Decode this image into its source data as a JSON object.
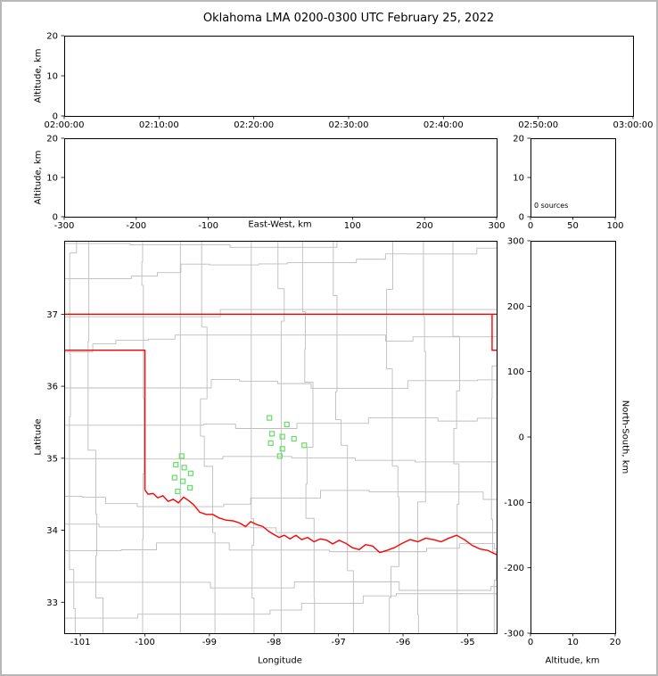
{
  "title": "Oklahoma LMA 0200-0300 UTC February 25, 2022",
  "colors": {
    "state_border": "#ff0000",
    "county_lines": "#bdbdbd",
    "station_marker": "#66dd66",
    "axis": "#000000",
    "background": "#ffffff",
    "figure_border": "#b8b8b8"
  },
  "chart_data": [
    {
      "id": "time_height",
      "type": "scatter",
      "xlabel": "",
      "ylabel": "Altitude, km",
      "ylim": [
        0,
        20
      ],
      "xticks": [
        "02:00:00",
        "02:10:00",
        "02:20:00",
        "02:30:00",
        "02:40:00",
        "02:50:00",
        "03:00:00"
      ],
      "yticks": [
        0,
        10,
        20
      ],
      "points": []
    },
    {
      "id": "east_west_height",
      "type": "scatter",
      "xlabel": "East-West, km",
      "ylabel": "Altitude, km",
      "xlim": [
        -300,
        300
      ],
      "ylim": [
        0,
        20
      ],
      "xticks": [
        -300,
        -200,
        -100,
        0,
        100,
        200,
        300
      ],
      "xtick_labels": [
        "-300",
        "-200",
        "-100",
        "",
        "100",
        "200",
        "300"
      ],
      "yticks": [
        0,
        10,
        20
      ],
      "points": []
    },
    {
      "id": "altitude_histogram",
      "type": "line",
      "annotation": "0 sources",
      "xlim": [
        0,
        100
      ],
      "ylim": [
        0,
        20
      ],
      "xticks": [
        0,
        50,
        100
      ],
      "yticks": [
        0,
        10,
        20
      ],
      "points": []
    },
    {
      "id": "plan_view_map",
      "type": "scatter",
      "xlabel": "Longitude",
      "ylabel": "Latitude",
      "xlim": [
        -101.25,
        -94.55
      ],
      "ylim": [
        32.57,
        38.02
      ],
      "xticks": [
        -101,
        -100,
        -99,
        -98,
        -97,
        -96,
        -95
      ],
      "yticks": [
        33,
        34,
        35,
        36,
        37
      ],
      "stations": [
        [
          -98.07,
          35.56
        ],
        [
          -97.8,
          35.47
        ],
        [
          -98.03,
          35.34
        ],
        [
          -97.87,
          35.3
        ],
        [
          -97.69,
          35.27
        ],
        [
          -98.05,
          35.21
        ],
        [
          -97.53,
          35.18
        ],
        [
          -97.87,
          35.13
        ],
        [
          -97.91,
          35.03
        ],
        [
          -99.43,
          35.03
        ],
        [
          -99.52,
          34.91
        ],
        [
          -99.39,
          34.87
        ],
        [
          -99.29,
          34.79
        ],
        [
          -99.54,
          34.73
        ],
        [
          -99.41,
          34.68
        ],
        [
          -99.3,
          34.59
        ],
        [
          -99.49,
          34.54
        ]
      ],
      "borders": [
        {
          "name": "kansas-north",
          "points": [
            [
              -101.25,
              37.0
            ],
            [
              -94.55,
              37.0
            ]
          ]
        },
        {
          "name": "missouri-east",
          "points": [
            [
              -94.62,
              37.0
            ],
            [
              -94.62,
              36.5
            ],
            [
              -94.55,
              36.5
            ]
          ]
        },
        {
          "name": "panhandle-west",
          "points": [
            [
              -101.25,
              36.5
            ],
            [
              -100.0,
              36.5
            ],
            [
              -100.0,
              34.56
            ]
          ]
        },
        {
          "name": "red-river-south",
          "points": [
            [
              -100.0,
              34.56
            ],
            [
              -99.95,
              34.5
            ],
            [
              -99.87,
              34.51
            ],
            [
              -99.8,
              34.45
            ],
            [
              -99.72,
              34.48
            ],
            [
              -99.64,
              34.4
            ],
            [
              -99.56,
              34.43
            ],
            [
              -99.48,
              34.38
            ],
            [
              -99.4,
              34.46
            ],
            [
              -99.32,
              34.41
            ],
            [
              -99.24,
              34.35
            ],
            [
              -99.15,
              34.25
            ],
            [
              -99.05,
              34.22
            ],
            [
              -98.95,
              34.22
            ],
            [
              -98.85,
              34.17
            ],
            [
              -98.74,
              34.14
            ],
            [
              -98.63,
              34.13
            ],
            [
              -98.53,
              34.1
            ],
            [
              -98.44,
              34.05
            ],
            [
              -98.36,
              34.12
            ],
            [
              -98.27,
              34.08
            ],
            [
              -98.17,
              34.05
            ],
            [
              -98.09,
              33.99
            ],
            [
              -98.0,
              33.94
            ],
            [
              -97.92,
              33.9
            ],
            [
              -97.84,
              33.93
            ],
            [
              -97.75,
              33.88
            ],
            [
              -97.66,
              33.93
            ],
            [
              -97.57,
              33.87
            ],
            [
              -97.48,
              33.9
            ],
            [
              -97.38,
              33.84
            ],
            [
              -97.28,
              33.88
            ],
            [
              -97.18,
              33.86
            ],
            [
              -97.09,
              33.81
            ],
            [
              -96.99,
              33.86
            ],
            [
              -96.89,
              33.82
            ],
            [
              -96.79,
              33.76
            ],
            [
              -96.68,
              33.73
            ],
            [
              -96.58,
              33.8
            ],
            [
              -96.47,
              33.78
            ],
            [
              -96.36,
              33.69
            ],
            [
              -96.25,
              33.72
            ],
            [
              -96.13,
              33.76
            ],
            [
              -96.01,
              33.82
            ],
            [
              -95.89,
              33.87
            ],
            [
              -95.77,
              33.84
            ],
            [
              -95.65,
              33.89
            ],
            [
              -95.53,
              33.87
            ],
            [
              -95.41,
              33.84
            ],
            [
              -95.29,
              33.89
            ],
            [
              -95.17,
              33.93
            ],
            [
              -95.05,
              33.87
            ],
            [
              -94.93,
              33.79
            ],
            [
              -94.81,
              33.74
            ],
            [
              -94.69,
              33.72
            ],
            [
              -94.55,
              33.66
            ]
          ]
        }
      ]
    },
    {
      "id": "north_south_height",
      "type": "scatter",
      "xlabel": "Altitude, km",
      "ylabel": "North-South, km",
      "xlim": [
        0,
        20
      ],
      "ylim": [
        -300,
        300
      ],
      "xticks": [
        0,
        10,
        20
      ],
      "yticks": [
        300,
        200,
        100,
        0,
        -100,
        -200,
        -300
      ],
      "points": []
    }
  ]
}
